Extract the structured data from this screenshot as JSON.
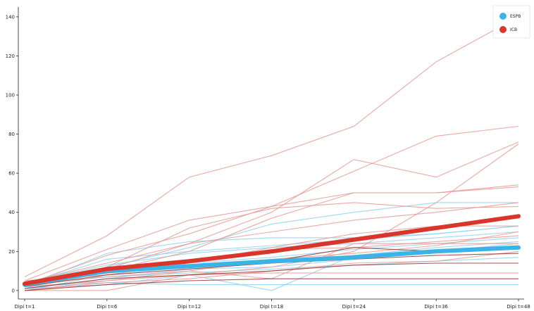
{
  "chart_data": {
    "type": "line",
    "title": "",
    "xlabel": "",
    "ylabel": "",
    "categories": [
      "Dipi t=1",
      "Dipi t=6",
      "Dipi t=12",
      "Dipi t=18",
      "Dipi t=24",
      "Dipi t=36",
      "Dipi t=48"
    ],
    "ylim": [
      -4,
      145
    ],
    "yticks": [
      0,
      20,
      40,
      60,
      80,
      100,
      120,
      140
    ],
    "grid": false,
    "legend_position": "top-right",
    "colors": {
      "ESPB": "#3ab4e6",
      "ICB": "#d9352a",
      "ESPB_individual": "#8fd0ee",
      "ICB_individual": "#e59a92",
      "ICB_dark_individual": "#8e2a2a"
    },
    "series": [
      {
        "name": "ESPB",
        "values": [
          3,
          10,
          12.5,
          15,
          17,
          20,
          22
        ]
      },
      {
        "name": "ICB",
        "values": [
          3.5,
          11,
          15,
          20,
          26,
          32,
          38
        ]
      }
    ],
    "individual_series": {
      "ESPB": [
        [
          2,
          19,
          25,
          27,
          27,
          29,
          33
        ],
        [
          3,
          16,
          20,
          23,
          26,
          29,
          33
        ],
        [
          4,
          13,
          19,
          22,
          24,
          27,
          30
        ],
        [
          1,
          12,
          22,
          34,
          40,
          45,
          45
        ],
        [
          2,
          9,
          14,
          17,
          21,
          24,
          27
        ],
        [
          0,
          8,
          12,
          15,
          18,
          21,
          23
        ],
        [
          1,
          6,
          11,
          12,
          16,
          20,
          24
        ],
        [
          2,
          4,
          3,
          3,
          3,
          3,
          3
        ],
        [
          1,
          3,
          8,
          0,
          18,
          22,
          25
        ],
        [
          3,
          7,
          9,
          11,
          13,
          15,
          17
        ]
      ],
      "ICB": [
        [
          7,
          28,
          58,
          69,
          84,
          117,
          140
        ],
        [
          5,
          21,
          36,
          43,
          61,
          79,
          84
        ],
        [
          4,
          14,
          24,
          40,
          67,
          58,
          76
        ],
        [
          3,
          10,
          20,
          37,
          50,
          50,
          54
        ],
        [
          3,
          18,
          29,
          43,
          50,
          50,
          53
        ],
        [
          3,
          12,
          32,
          42,
          45,
          42,
          43
        ],
        [
          2,
          11,
          24,
          30,
          36,
          40,
          45
        ],
        [
          5,
          8,
          14,
          22,
          29,
          33,
          33
        ],
        [
          0,
          0,
          8,
          12,
          20,
          45,
          75
        ],
        [
          0,
          5,
          10,
          6,
          24,
          24,
          24
        ],
        [
          2,
          9,
          15,
          21,
          22,
          25,
          28
        ],
        [
          3,
          7,
          10,
          16,
          19,
          23,
          30
        ],
        [
          0,
          4,
          6,
          10,
          14,
          15,
          20
        ],
        [
          2,
          5,
          8,
          9,
          9,
          9,
          9
        ]
      ],
      "ICB_dark": [
        [
          4,
          9,
          12,
          15,
          22,
          20,
          22
        ],
        [
          1,
          6,
          8,
          10,
          13,
          14,
          14
        ],
        [
          0,
          3,
          5,
          6,
          6,
          6,
          6
        ],
        [
          2,
          8,
          11,
          14,
          16,
          18,
          19
        ]
      ]
    },
    "legend": [
      {
        "label": "ESPB",
        "color": "#3ab4e6"
      },
      {
        "label": "ICB",
        "color": "#d9352a"
      }
    ]
  }
}
